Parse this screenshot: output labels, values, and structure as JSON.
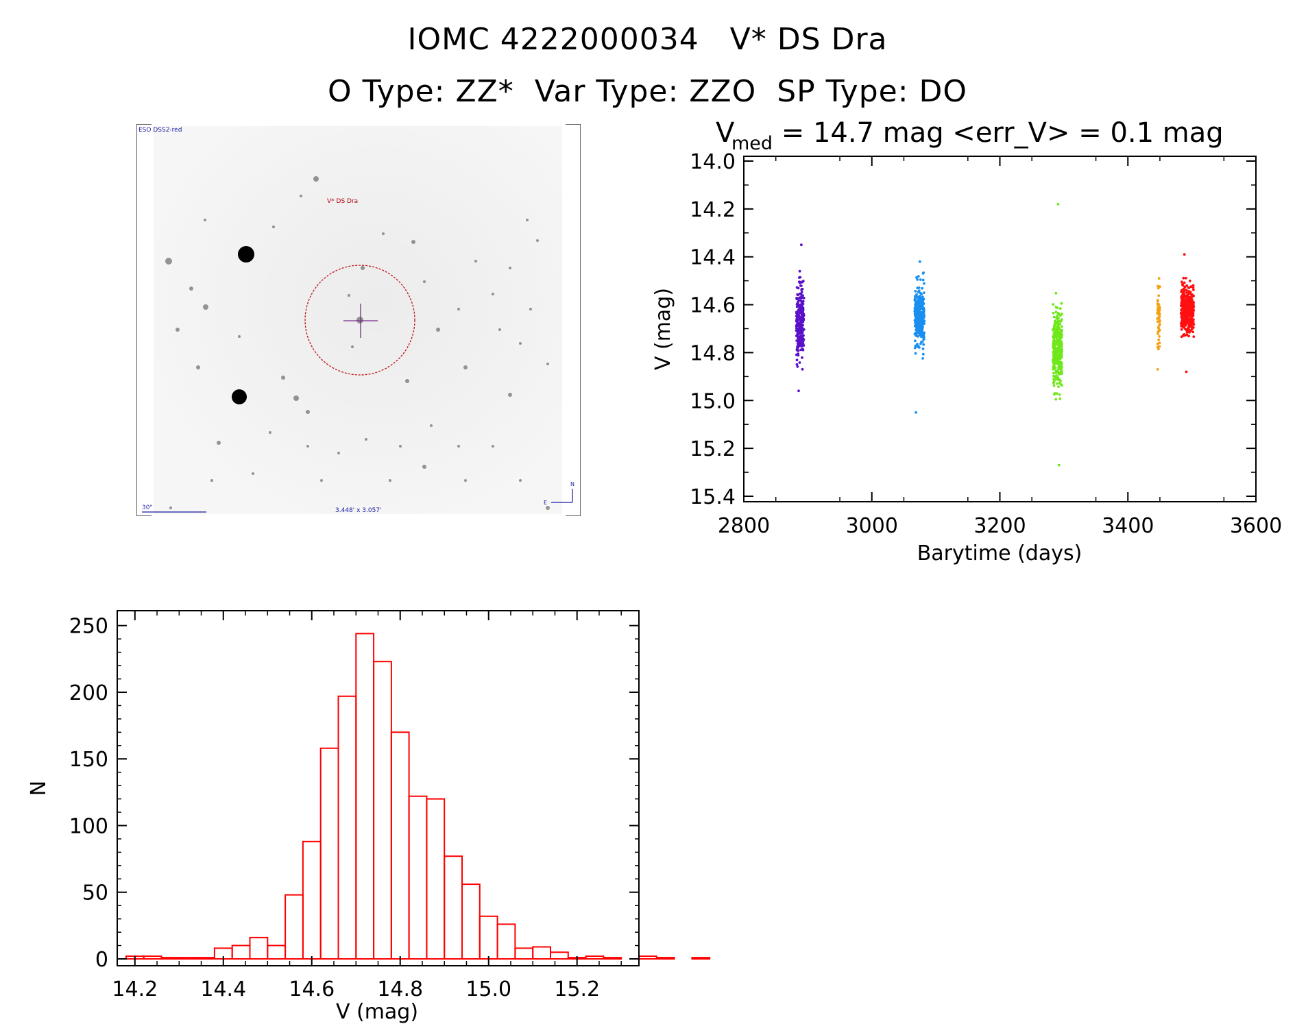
{
  "header": {
    "line1": "IOMC 4222000034   V* DS Dra",
    "line2": "O Type: ZZ*  Var Type: ZZO  SP Type: DO"
  },
  "finder": {
    "survey_label": "ESO DSS2-red",
    "target_label": "V* DS Dra",
    "scale_label": "30\"",
    "fov_label": "3.448' x 3.057'",
    "north_label": "N",
    "east_label": "E"
  },
  "colors": {
    "hist": "#ff0000",
    "marker": "#b0000c",
    "cross": "#7a2a8a",
    "finder_text": "#1a1aa0"
  },
  "chart_data": [
    {
      "type": "scatter",
      "title": "V_med = 14.7 mag <err_V> = 0.1 mag",
      "title_parts": {
        "v": "V",
        "sub": "med",
        "rest": " = 14.7 mag <err_V> = 0.1 mag"
      },
      "xlabel": "Barytime (days)",
      "ylabel": "V (mag)",
      "xlim": [
        2800,
        3600
      ],
      "ylim": [
        14.0,
        15.4
      ],
      "y_inverted": true,
      "x_ticks": [
        "2800",
        "3000",
        "3200",
        "3400",
        "3600"
      ],
      "y_ticks": [
        "14.0",
        "14.2",
        "14.4",
        "14.6",
        "14.8",
        "15.0",
        "15.2",
        "15.4"
      ],
      "series": [
        {
          "color": "#5a10c8",
          "x_range": [
            2882,
            2894
          ],
          "y_median": 14.67,
          "y_spread": 0.08,
          "y_min": 14.35,
          "y_max": 14.96,
          "count": 260
        },
        {
          "color": "#1a8ff0",
          "x_range": [
            3067,
            3082
          ],
          "y_median": 14.64,
          "y_spread": 0.06,
          "y_min": 14.42,
          "y_max": 15.05,
          "count": 320
        },
        {
          "color": "#6ee81a",
          "x_range": [
            3283,
            3297
          ],
          "y_median": 14.78,
          "y_spread": 0.08,
          "y_min": 14.18,
          "y_max": 15.27,
          "count": 330
        },
        {
          "color": "#f5a010",
          "x_range": [
            3446,
            3450
          ],
          "y_median": 14.67,
          "y_spread": 0.05,
          "y_min": 14.49,
          "y_max": 14.87,
          "count": 50
        },
        {
          "color": "#ff1010",
          "x_range": [
            3483,
            3503
          ],
          "y_median": 14.62,
          "y_spread": 0.05,
          "y_min": 14.39,
          "y_max": 14.88,
          "count": 380
        }
      ]
    },
    {
      "type": "bar",
      "subtype": "histogram",
      "xlabel": "V (mag)",
      "ylabel": "N",
      "xlim": [
        14.16,
        15.34
      ],
      "ylim": [
        0,
        255
      ],
      "x_ticks": [
        "14.2",
        "14.4",
        "14.6",
        "14.8",
        "15.0",
        "15.2"
      ],
      "y_ticks": [
        "0",
        "50",
        "100",
        "150",
        "200",
        "250"
      ],
      "bin_start": 14.18,
      "bin_width": 0.04,
      "values": [
        2,
        2,
        1,
        1,
        1,
        8,
        10,
        16,
        10,
        48,
        88,
        158,
        197,
        244,
        223,
        170,
        122,
        120,
        77,
        56,
        32,
        26,
        8,
        9,
        5,
        1,
        2,
        1,
        0,
        2,
        1,
        0,
        1
      ]
    }
  ]
}
